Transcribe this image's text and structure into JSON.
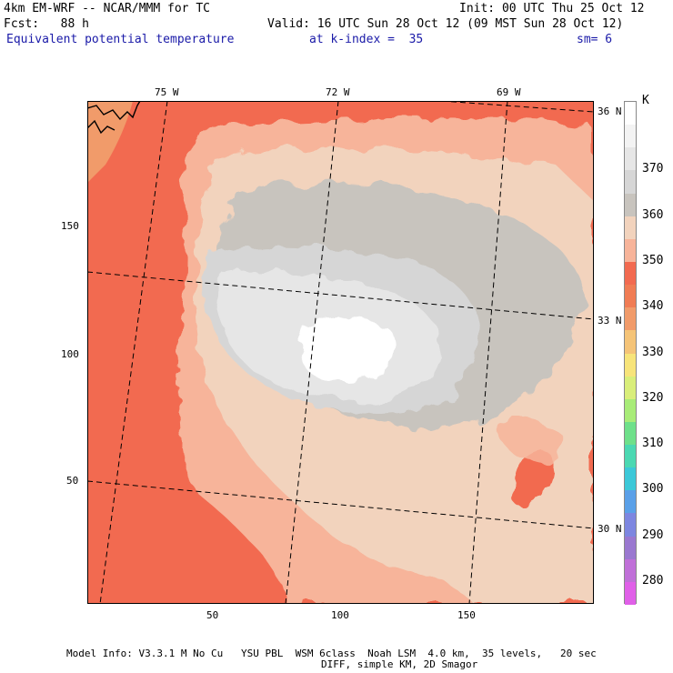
{
  "header": {
    "model_title": "4km EM-WRF -- NCAR/MMM for TC",
    "init": "Init: 00 UTC Thu 25 Oct 12",
    "fcst": "Fcst:   88 h",
    "valid": "Valid: 16 UTC Sun 28 Oct 12 (09 MST Sun 28 Oct 12)",
    "field": "Equivalent potential temperature",
    "level": "at k-index =  35",
    "smoothing": "sm= 6"
  },
  "map": {
    "lon_labels": [
      "75 W",
      "72 W",
      "69 W"
    ],
    "lat_labels": [
      "36 N",
      "33 N",
      "30 N"
    ],
    "x_ticks": [
      "50",
      "100",
      "150"
    ],
    "y_ticks": [
      "150",
      "100",
      "50"
    ]
  },
  "colorbar": {
    "unit": "K",
    "labels": [
      "370",
      "360",
      "350",
      "340",
      "330",
      "320",
      "310",
      "300",
      "290",
      "280"
    ],
    "colors": [
      "#ffffff",
      "#f3f3f3",
      "#e6e6e6",
      "#d6d6d6",
      "#c8c4be",
      "#f2d3bd",
      "#f7b49a",
      "#f26a50",
      "#f07c54",
      "#f19b6a",
      "#f5c478",
      "#f7e47a",
      "#d9ee7a",
      "#a8ec78",
      "#6ee08a",
      "#4bd8b2",
      "#3cc8d8",
      "#5aa0e8",
      "#7d86e0",
      "#9a78d0",
      "#c070d8",
      "#e060e8"
    ]
  },
  "footer": {
    "line1": "Model Info: V3.3.1 M No Cu   YSU PBL  WSM 6class  Noah LSM  4.0 km,  35 levels,   20 sec",
    "line2": "DIFF, simple KM, 2D Smagor"
  }
}
